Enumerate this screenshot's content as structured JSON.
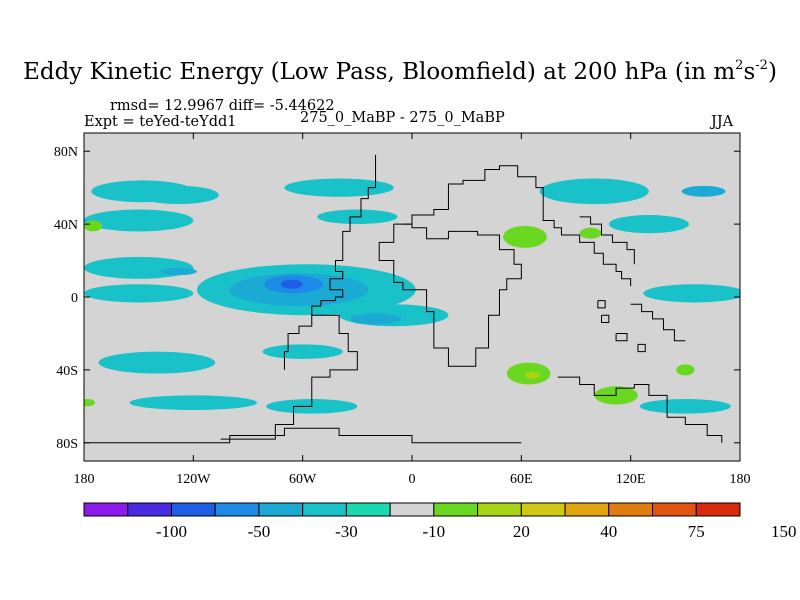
{
  "header": {
    "title_main": "Eddy Kinetic Energy (Low Pass, Bloomfield) at 200 hPa (in m",
    "title_sup1": "2",
    "title_mid": "s",
    "title_sup2": "-2",
    "title_end": ")",
    "stats": "rmsd= 12.9967 diff= -5.44622",
    "experiment": "Expt = teYed-teYdd1",
    "comparison": "275_0_MaBP - 275_0_MaBP",
    "season": "JJA"
  },
  "chart_data": {
    "type": "heatmap",
    "projection": "cylindrical-equidistant",
    "xlim": [
      -180,
      180
    ],
    "ylim": [
      -90,
      90
    ],
    "x_ticks": [
      {
        "value": -180,
        "label": "180"
      },
      {
        "value": -120,
        "label": "120W"
      },
      {
        "value": -60,
        "label": "60W"
      },
      {
        "value": 0,
        "label": "0"
      },
      {
        "value": 60,
        "label": "60E"
      },
      {
        "value": 120,
        "label": "120E"
      },
      {
        "value": 180,
        "label": "180"
      }
    ],
    "y_ticks": [
      {
        "value": 80,
        "label": "80N"
      },
      {
        "value": 40,
        "label": "40N"
      },
      {
        "value": 0,
        "label": "0"
      },
      {
        "value": -40,
        "label": "40S"
      },
      {
        "value": -80,
        "label": "80S"
      }
    ],
    "colorbar": {
      "colors": [
        "#8c1aea",
        "#4a2ae0",
        "#1e5ee6",
        "#1e8ae8",
        "#1aaad4",
        "#18c2c8",
        "#1ad8b0",
        "#d4d4d4",
        "#6ad820",
        "#a8d418",
        "#d0c814",
        "#e0a410",
        "#e07c10",
        "#e05410",
        "#d82a0a"
      ],
      "labels": [
        {
          "label": "-100",
          "after_box": 2
        },
        {
          "label": "-50",
          "after_box": 4
        },
        {
          "label": "-30",
          "after_box": 6
        },
        {
          "label": "-10",
          "after_box": 8
        },
        {
          "label": "20",
          "after_box": 10
        },
        {
          "label": "40",
          "after_box": 12
        },
        {
          "label": "75",
          "after_box": 14
        },
        {
          "label": "150",
          "after_box": 16
        }
      ]
    },
    "blobs": [
      {
        "name": "cyan-north-pacific",
        "level": 5,
        "lon": -148,
        "lat": 58,
        "rlon": 28,
        "rlat": 6
      },
      {
        "name": "cyan-north-pacific-2",
        "level": 5,
        "lon": -128,
        "lat": 56,
        "rlon": 22,
        "rlat": 5
      },
      {
        "name": "cyan-north-atlantic",
        "level": 5,
        "lon": -40,
        "lat": 60,
        "rlon": 30,
        "rlat": 5
      },
      {
        "name": "cyan-siberia",
        "level": 5,
        "lon": 100,
        "lat": 58,
        "rlon": 30,
        "rlat": 7
      },
      {
        "name": "blue-siberia",
        "level": 4,
        "lon": 160,
        "lat": 58,
        "rlon": 12,
        "rlat": 3
      },
      {
        "name": "cyan-midlat-pacific",
        "level": 5,
        "lon": -150,
        "lat": 42,
        "rlon": 30,
        "rlat": 6
      },
      {
        "name": "green-west-pacific",
        "level": 8,
        "lon": -175,
        "lat": 39,
        "rlon": 5,
        "rlat": 3
      },
      {
        "name": "cyan-midlat-atlantic",
        "level": 5,
        "lon": -30,
        "lat": 44,
        "rlon": 22,
        "rlat": 4
      },
      {
        "name": "cyan-east-asia",
        "level": 5,
        "lon": 130,
        "lat": 40,
        "rlon": 22,
        "rlat": 5
      },
      {
        "name": "cyan-subtropic-pacific",
        "level": 5,
        "lon": -150,
        "lat": 16,
        "rlon": 30,
        "rlat": 6
      },
      {
        "name": "blue-subtropic-pacific",
        "level": 4,
        "lon": -128,
        "lat": 14,
        "rlon": 10,
        "rlat": 2
      },
      {
        "name": "cyan-tropic-jet-west",
        "level": 5,
        "lon": -150,
        "lat": 2,
        "rlon": 30,
        "rlat": 5
      },
      {
        "name": "cyan-tropical-jet",
        "level": 5,
        "lon": -58,
        "lat": 4,
        "rlon": 60,
        "rlat": 14
      },
      {
        "name": "blue-tropical-jet",
        "level": 4,
        "lon": -62,
        "lat": 4,
        "rlon": 38,
        "rlat": 9
      },
      {
        "name": "deep-blue-tropical-jet",
        "level": 3,
        "lon": -65,
        "lat": 7,
        "rlon": 16,
        "rlat": 5
      },
      {
        "name": "darker-blue-core",
        "level": 2,
        "lon": -66,
        "lat": 7,
        "rlon": 6,
        "rlat": 2.5
      },
      {
        "name": "cyan-east-atlantic",
        "level": 5,
        "lon": -10,
        "lat": -10,
        "rlon": 30,
        "rlat": 6
      },
      {
        "name": "blue-east-atlantic",
        "level": 4,
        "lon": -20,
        "lat": -12,
        "rlon": 14,
        "rlat": 3
      },
      {
        "name": "cyan-east-pacific-tropic",
        "level": 5,
        "lon": 155,
        "lat": 2,
        "rlon": 28,
        "rlat": 5
      },
      {
        "name": "cyan-south-pacific",
        "level": 5,
        "lon": -140,
        "lat": -36,
        "rlon": 32,
        "rlat": 6
      },
      {
        "name": "cyan-south-atlantic",
        "level": 5,
        "lon": -60,
        "lat": -30,
        "rlon": 22,
        "rlat": 4
      },
      {
        "name": "cyan-southern-ocean",
        "level": 5,
        "lon": -120,
        "lat": -58,
        "rlon": 35,
        "rlat": 4
      },
      {
        "name": "cyan-southern-ocean-2",
        "level": 5,
        "lon": -55,
        "lat": -60,
        "rlon": 25,
        "rlat": 4
      },
      {
        "name": "cyan-southern-ocean-3",
        "level": 5,
        "lon": 150,
        "lat": -60,
        "rlon": 25,
        "rlat": 4
      },
      {
        "name": "green-arabia",
        "level": 8,
        "lon": 62,
        "lat": 33,
        "rlon": 12,
        "rlat": 6
      },
      {
        "name": "green-china",
        "level": 8,
        "lon": 98,
        "lat": 35,
        "rlon": 6,
        "rlat": 3
      },
      {
        "name": "green-south-africa",
        "level": 8,
        "lon": 64,
        "lat": -42,
        "rlon": 12,
        "rlat": 6
      },
      {
        "name": "yellowgreen-south-africa",
        "level": 9,
        "lon": 66,
        "lat": -43,
        "rlon": 4,
        "rlat": 2
      },
      {
        "name": "green-south-indian",
        "level": 8,
        "lon": 112,
        "lat": -54,
        "rlon": 12,
        "rlat": 5
      },
      {
        "name": "green-south-pacific",
        "level": 8,
        "lon": 150,
        "lat": -40,
        "rlon": 5,
        "rlat": 3
      },
      {
        "name": "green-south-pacific-2",
        "level": 8,
        "lon": -178,
        "lat": -58,
        "rlon": 4,
        "rlat": 2
      }
    ],
    "coastlines": [
      {
        "name": "americas-outline",
        "points": [
          [
            -105,
            -78
          ],
          [
            -75,
            -78
          ],
          [
            -75,
            -70
          ],
          [
            -65,
            -70
          ],
          [
            -65,
            -60
          ],
          [
            -55,
            -60
          ],
          [
            -55,
            -44
          ],
          [
            -45,
            -44
          ],
          [
            -45,
            -40
          ],
          [
            -30,
            -40
          ],
          [
            -30,
            -30
          ],
          [
            -35,
            -30
          ],
          [
            -35,
            -20
          ],
          [
            -40,
            -20
          ],
          [
            -40,
            -10
          ],
          [
            -55,
            -10
          ],
          [
            -55,
            -5
          ],
          [
            -50,
            -5
          ],
          [
            -50,
            -2
          ],
          [
            -42,
            -2
          ],
          [
            -42,
            0
          ],
          [
            -38,
            0
          ],
          [
            -38,
            4
          ],
          [
            -45,
            4
          ],
          [
            -45,
            10
          ],
          [
            -38,
            10
          ],
          [
            -38,
            14
          ],
          [
            -42,
            14
          ],
          [
            -42,
            20
          ],
          [
            -38,
            20
          ],
          [
            -38,
            36
          ],
          [
            -34,
            36
          ],
          [
            -34,
            44
          ],
          [
            -28,
            44
          ],
          [
            -28,
            54
          ],
          [
            -24,
            54
          ],
          [
            -24,
            60
          ],
          [
            -20,
            60
          ],
          [
            -20,
            78
          ]
        ]
      },
      {
        "name": "south-america-west",
        "points": [
          [
            -70,
            -40
          ],
          [
            -70,
            -30
          ],
          [
            -68,
            -30
          ],
          [
            -68,
            -20
          ],
          [
            -62,
            -20
          ],
          [
            -62,
            -16
          ],
          [
            -55,
            -16
          ],
          [
            -55,
            -10
          ]
        ]
      },
      {
        "name": "eurasia-outline",
        "points": [
          [
            -5,
            40
          ],
          [
            0,
            40
          ],
          [
            0,
            45
          ],
          [
            12,
            45
          ],
          [
            12,
            48
          ],
          [
            20,
            48
          ],
          [
            20,
            62
          ],
          [
            28,
            62
          ],
          [
            28,
            64
          ],
          [
            40,
            64
          ],
          [
            40,
            70
          ],
          [
            48,
            70
          ],
          [
            48,
            72
          ],
          [
            58,
            72
          ],
          [
            58,
            66
          ],
          [
            68,
            66
          ],
          [
            68,
            60
          ],
          [
            72,
            60
          ],
          [
            72,
            42
          ],
          [
            78,
            42
          ],
          [
            78,
            38
          ],
          [
            82,
            38
          ],
          [
            82,
            34
          ],
          [
            92,
            34
          ],
          [
            92,
            30
          ],
          [
            100,
            30
          ],
          [
            100,
            24
          ],
          [
            105,
            24
          ],
          [
            105,
            18
          ],
          [
            112,
            18
          ],
          [
            112,
            14
          ],
          [
            115,
            14
          ],
          [
            115,
            10
          ],
          [
            120,
            10
          ],
          [
            120,
            6
          ]
        ]
      },
      {
        "name": "africa-outline",
        "points": [
          [
            -10,
            40
          ],
          [
            -10,
            30
          ],
          [
            -18,
            30
          ],
          [
            -18,
            20
          ],
          [
            -10,
            20
          ],
          [
            -10,
            8
          ],
          [
            -5,
            8
          ],
          [
            -5,
            4
          ],
          [
            8,
            4
          ],
          [
            8,
            -8
          ],
          [
            12,
            -8
          ],
          [
            12,
            -28
          ],
          [
            20,
            -28
          ],
          [
            20,
            -38
          ],
          [
            35,
            -38
          ],
          [
            35,
            -28
          ],
          [
            42,
            -28
          ],
          [
            42,
            -10
          ],
          [
            48,
            -10
          ],
          [
            48,
            4
          ],
          [
            52,
            4
          ],
          [
            52,
            10
          ],
          [
            60,
            10
          ],
          [
            60,
            18
          ],
          [
            56,
            18
          ],
          [
            56,
            26
          ],
          [
            48,
            26
          ],
          [
            48,
            34
          ],
          [
            36,
            34
          ],
          [
            36,
            36
          ],
          [
            20,
            36
          ],
          [
            20,
            32
          ],
          [
            8,
            32
          ],
          [
            8,
            38
          ],
          [
            0,
            38
          ],
          [
            0,
            40
          ],
          [
            -10,
            40
          ]
        ]
      },
      {
        "name": "asia-east-coast",
        "points": [
          [
            92,
            44
          ],
          [
            98,
            44
          ],
          [
            98,
            40
          ],
          [
            104,
            40
          ],
          [
            104,
            34
          ],
          [
            110,
            34
          ],
          [
            110,
            30
          ],
          [
            118,
            30
          ],
          [
            118,
            26
          ],
          [
            122,
            26
          ],
          [
            122,
            18
          ]
        ]
      },
      {
        "name": "australia-outline",
        "points": [
          [
            80,
            -44
          ],
          [
            92,
            -44
          ],
          [
            92,
            -48
          ],
          [
            100,
            -48
          ],
          [
            100,
            -54
          ],
          [
            112,
            -54
          ],
          [
            112,
            -50
          ],
          [
            122,
            -50
          ],
          [
            122,
            -48
          ],
          [
            130,
            -48
          ],
          [
            130,
            -54
          ],
          [
            140,
            -54
          ],
          [
            140,
            -66
          ],
          [
            150,
            -66
          ],
          [
            150,
            -70
          ],
          [
            162,
            -70
          ],
          [
            162,
            -76
          ],
          [
            170,
            -76
          ],
          [
            170,
            -80
          ]
        ]
      },
      {
        "name": "antarctica-outline",
        "points": [
          [
            -180,
            -80
          ],
          [
            -100,
            -80
          ],
          [
            -100,
            -76
          ],
          [
            -70,
            -76
          ],
          [
            -70,
            -72
          ],
          [
            -40,
            -72
          ],
          [
            -40,
            -76
          ],
          [
            0,
            -76
          ],
          [
            0,
            -80
          ],
          [
            60,
            -80
          ]
        ]
      },
      {
        "name": "indonesia-islands",
        "points": [
          [
            120,
            -4
          ],
          [
            126,
            -4
          ],
          [
            126,
            -8
          ],
          [
            132,
            -8
          ],
          [
            132,
            -12
          ],
          [
            138,
            -12
          ],
          [
            138,
            -18
          ],
          [
            144,
            -18
          ],
          [
            144,
            -24
          ],
          [
            150,
            -24
          ]
        ]
      },
      {
        "name": "islands-1",
        "points": [
          [
            104,
            -10
          ],
          [
            108,
            -10
          ],
          [
            108,
            -14
          ],
          [
            104,
            -14
          ],
          [
            104,
            -10
          ]
        ]
      },
      {
        "name": "islands-2",
        "points": [
          [
            112,
            -20
          ],
          [
            118,
            -20
          ],
          [
            118,
            -24
          ],
          [
            112,
            -24
          ],
          [
            112,
            -20
          ]
        ]
      },
      {
        "name": "islands-3",
        "points": [
          [
            124,
            -26
          ],
          [
            128,
            -26
          ],
          [
            128,
            -30
          ],
          [
            124,
            -30
          ],
          [
            124,
            -26
          ]
        ]
      },
      {
        "name": "islands-4",
        "points": [
          [
            102,
            -2
          ],
          [
            106,
            -2
          ],
          [
            106,
            -6
          ],
          [
            102,
            -6
          ],
          [
            102,
            -2
          ]
        ]
      }
    ]
  }
}
